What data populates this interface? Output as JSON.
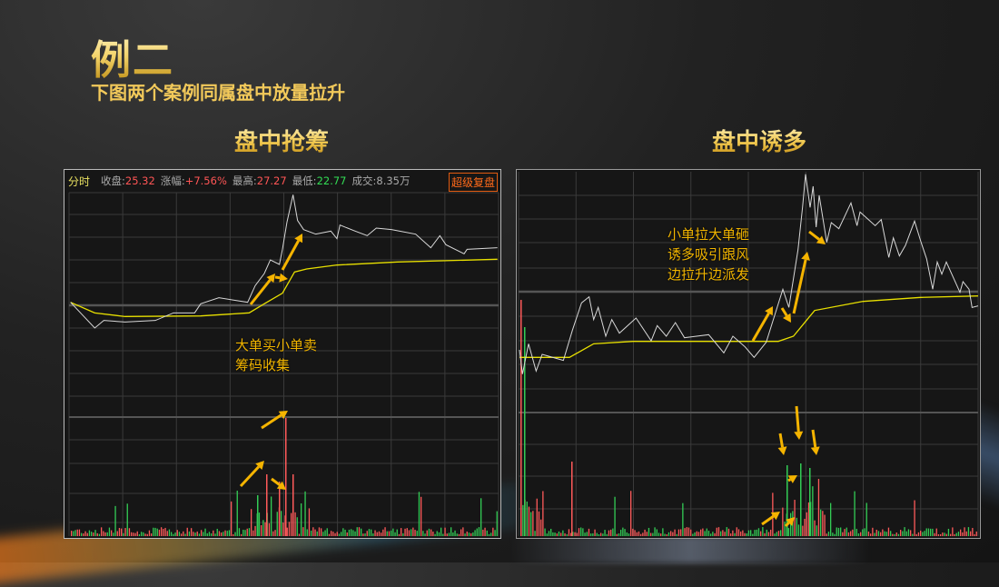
{
  "slide": {
    "title": "例二",
    "subtitle": "下图两个案例同属盘中放量拉升"
  },
  "left_chart": {
    "caption": "盘中抢筹",
    "header": {
      "tab": "分时",
      "close_label": "收盘:",
      "close_value": "25.32",
      "change_label": "涨幅:",
      "change_value": "+7.56%",
      "high_label": "最高:",
      "high_value": "27.27",
      "low_label": "最低:",
      "low_value": "22.77",
      "volume_label": "成交:",
      "volume_value": "8.35万",
      "button": "超级复盘"
    },
    "annotation": [
      "大单买小单卖",
      "筹码收集"
    ]
  },
  "right_chart": {
    "caption": "盘中诱多",
    "annotation": [
      "小单拉大单砸",
      "诱多吸引跟风",
      "边拉升边派发"
    ]
  },
  "colors": {
    "price_line": "#d8d8d8",
    "avg_line": "#e8e000",
    "up_bar": "#ff5a5a",
    "down_bar": "#33cc55",
    "arrow": "#f5b400",
    "grid": "#3a3a3a"
  }
}
